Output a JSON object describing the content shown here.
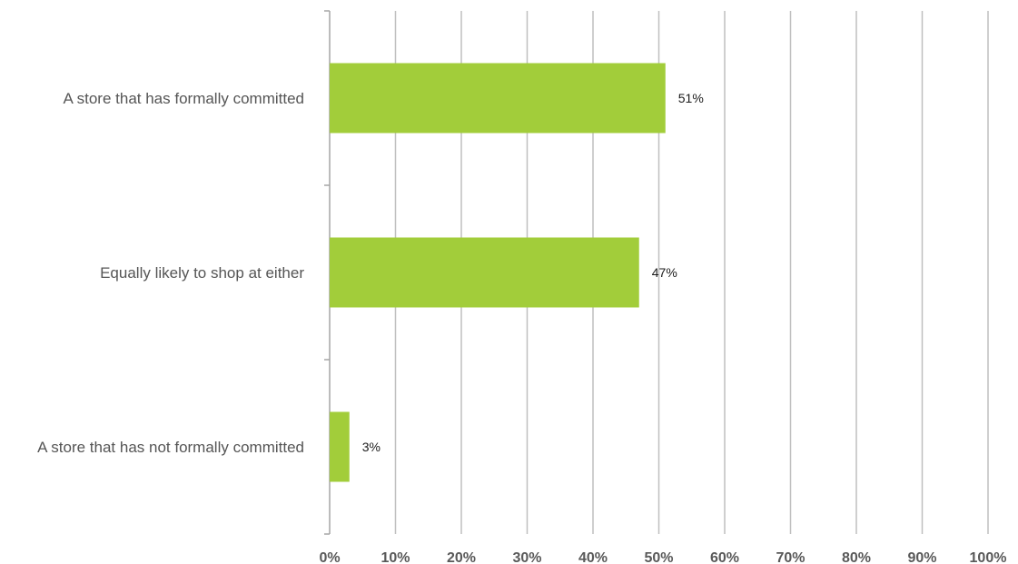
{
  "chart_data": {
    "type": "bar",
    "orientation": "horizontal",
    "categories": [
      "A store that has formally committed",
      "Equally likely to shop at either",
      "A store that has not formally committed"
    ],
    "values": [
      51,
      47,
      3
    ],
    "data_labels": [
      "51%",
      "47%",
      "3%"
    ],
    "xlim": [
      0,
      100
    ],
    "x_ticks": [
      0,
      10,
      20,
      30,
      40,
      50,
      60,
      70,
      80,
      90,
      100
    ],
    "x_tick_labels": [
      "0%",
      "10%",
      "20%",
      "30%",
      "40%",
      "50%",
      "60%",
      "70%",
      "80%",
      "90%",
      "100%"
    ],
    "grid": true,
    "legend": "none",
    "bar_color": "#a2cd3a",
    "grid_color": "#bfbfbf",
    "axis_color": "#a6a6a6"
  }
}
